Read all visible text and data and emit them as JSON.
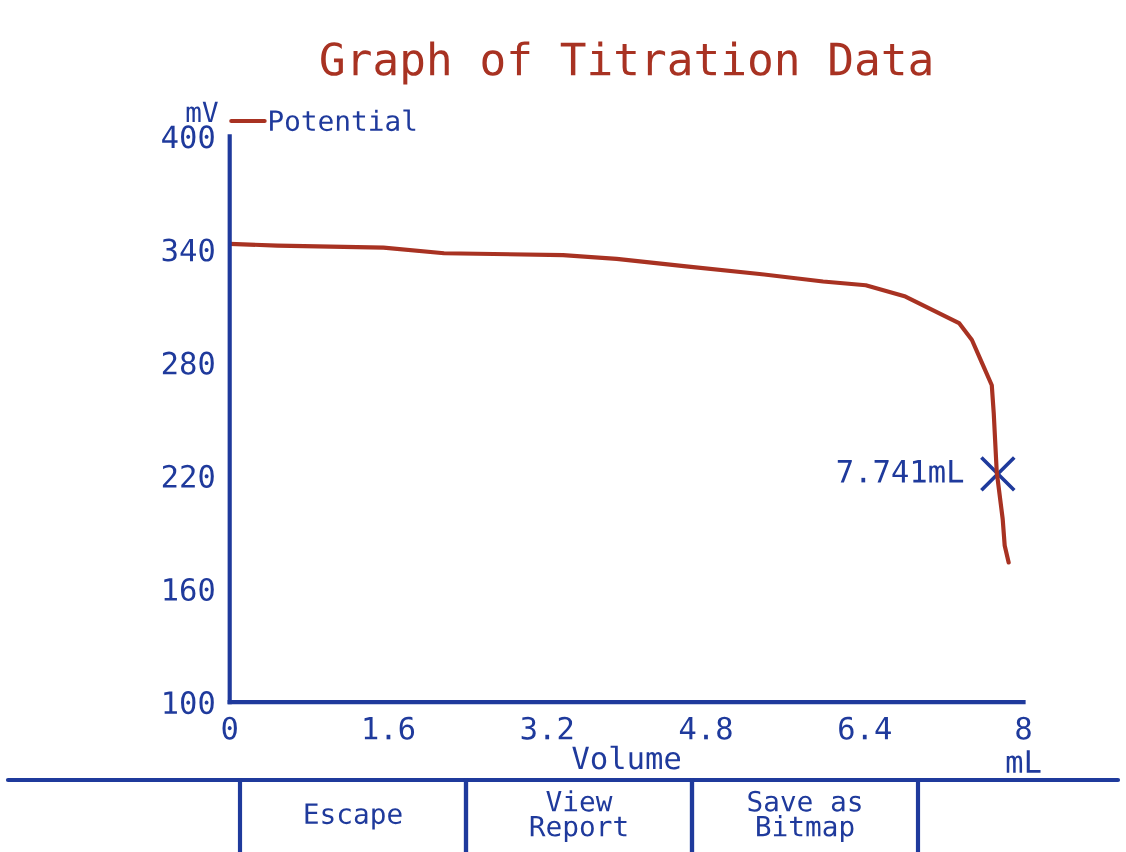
{
  "chart_data": {
    "type": "line",
    "title": "Graph of Titration Data",
    "xlabel": "Volume",
    "ylabel": "mV",
    "series": [
      {
        "name": "Potential",
        "color": "#a83222",
        "x": [
          0,
          0.48,
          1.55,
          2.16,
          3.36,
          3.9,
          4.6,
          5.34,
          5.98,
          6.41,
          6.81,
          7.08,
          7.35,
          7.48,
          7.58,
          7.68,
          7.7,
          7.73,
          7.79,
          7.81,
          7.85
        ],
        "values": [
          343,
          342,
          341,
          338,
          337,
          335,
          331,
          327,
          323,
          321,
          315,
          308,
          301,
          292,
          280,
          268,
          253,
          222,
          197,
          183,
          174
        ]
      },
      {
        "type": "scatter",
        "marker": "cross",
        "color": "#1f3a9c",
        "x": [
          7.741
        ],
        "values": [
          221
        ]
      }
    ],
    "xlim": [
      0,
      8
    ],
    "xticks": [
      0,
      1.6,
      3.2,
      4.8,
      6.4,
      8
    ],
    "ylim": [
      100,
      400
    ],
    "yticks": [
      100,
      160,
      220,
      280,
      340,
      400
    ],
    "grid": false,
    "legend": "top left",
    "annotations": [
      {
        "text": "7.741mL",
        "x": 7.741,
        "y": 221
      },
      "mL",
      "Escape",
      "View\nReport",
      "Save as\nBitmap"
    ]
  }
}
